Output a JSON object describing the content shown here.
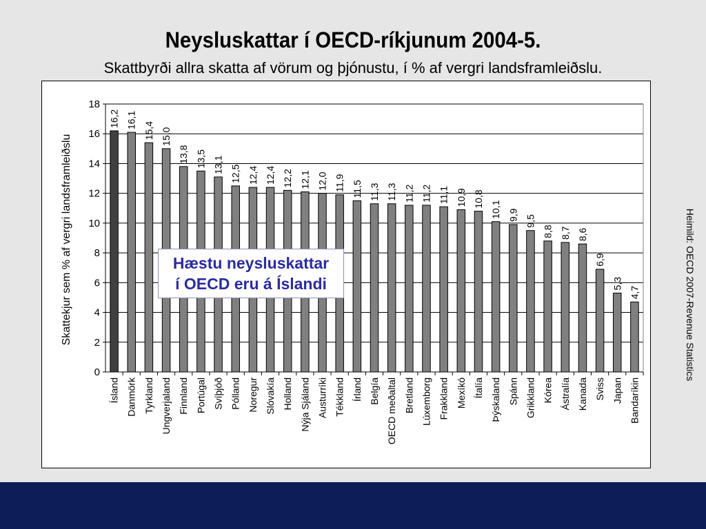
{
  "title": "Neysluskattar í OECD-ríkjunum 2004-5.",
  "subtitle": "Skattbyrði allra skatta af vörum og þjónustu, í % af vergri landsframleiðslu.",
  "source_note": "Heimild: OECD 2007-Revenue Statistics",
  "callout": {
    "line1": "Hæstu neysluskattar",
    "line2": "í OECD eru á Íslandi"
  },
  "colors": {
    "bar": "#808080",
    "highlight_bar": "#404040",
    "background": "#e6e6e6",
    "footer": "#0c1e55",
    "callout_text": "#2b2b9e"
  },
  "chart_data": {
    "type": "bar",
    "title": "",
    "xlabel": "",
    "ylabel": "Skattekjur sem % af vergri landsframleiðslu",
    "ylim": [
      0,
      18
    ],
    "yticks": [
      0,
      2,
      4,
      6,
      8,
      10,
      12,
      14,
      16,
      18
    ],
    "grid": true,
    "highlight": "Ísland",
    "categories": [
      "Ísland",
      "Danmörk",
      "Tyrkland",
      "Ungverjaland",
      "Finnland",
      "Portúgal",
      "Svíþjóð",
      "Pólland",
      "Noregur",
      "Slóvakía",
      "Holland",
      "Nýja Sjáland",
      "Austurríki",
      "Tékkland",
      "Írland",
      "Belgía",
      "OECD meðaltal",
      "Bretland",
      "Lúxemborg",
      "Frakkland",
      "Mexíkó",
      "Ítalía",
      "Þýskaland",
      "Spánn",
      "Grikkland",
      "Kórea",
      "Ástralía",
      "Kanada",
      "Sviss",
      "Japan",
      "Bandaríkin"
    ],
    "values": [
      16.2,
      16.1,
      15.4,
      15.0,
      13.8,
      13.5,
      13.1,
      12.5,
      12.4,
      12.4,
      12.2,
      12.1,
      12.0,
      11.9,
      11.5,
      11.3,
      11.3,
      11.2,
      11.2,
      11.1,
      10.9,
      10.8,
      10.1,
      9.9,
      9.5,
      8.8,
      8.7,
      8.6,
      6.9,
      5.3,
      4.7
    ],
    "value_labels": [
      "16,2",
      "16,1",
      "15,4",
      "15,0",
      "13,8",
      "13,5",
      "13,1",
      "12,5",
      "12,4",
      "12,4",
      "12,2",
      "12,1",
      "12,0",
      "11,9",
      "11,5",
      "11,3",
      "11,3",
      "11,2",
      "11,2",
      "11,1",
      "10,9",
      "10,8",
      "10,1",
      "9,9",
      "9,5",
      "8,8",
      "8,7",
      "8,6",
      "6,9",
      "5,3",
      "4,7"
    ]
  }
}
